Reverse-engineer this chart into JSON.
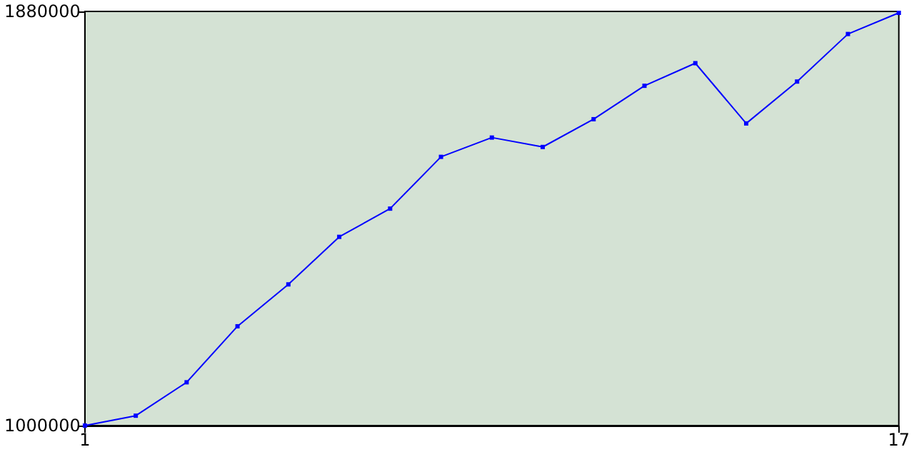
{
  "chart_data": {
    "type": "line",
    "x": [
      1,
      2,
      3,
      4,
      5,
      6,
      7,
      8,
      9,
      10,
      11,
      12,
      13,
      14,
      15,
      16,
      17
    ],
    "series": [
      {
        "color": "#0000ff",
        "values": [
          1000000,
          1021000,
          1092000,
          1211000,
          1300000,
          1401000,
          1461000,
          1571000,
          1612000,
          1592000,
          1651000,
          1722000,
          1770000,
          1642000,
          1731000,
          1832000,
          1877000
        ]
      }
    ],
    "xlim": [
      1,
      17
    ],
    "xticks": [
      1,
      17
    ],
    "ylim": [
      1000000,
      1880000
    ],
    "yticks": [
      1000000,
      1880000
    ],
    "marker": "square",
    "line_style": "solid"
  }
}
